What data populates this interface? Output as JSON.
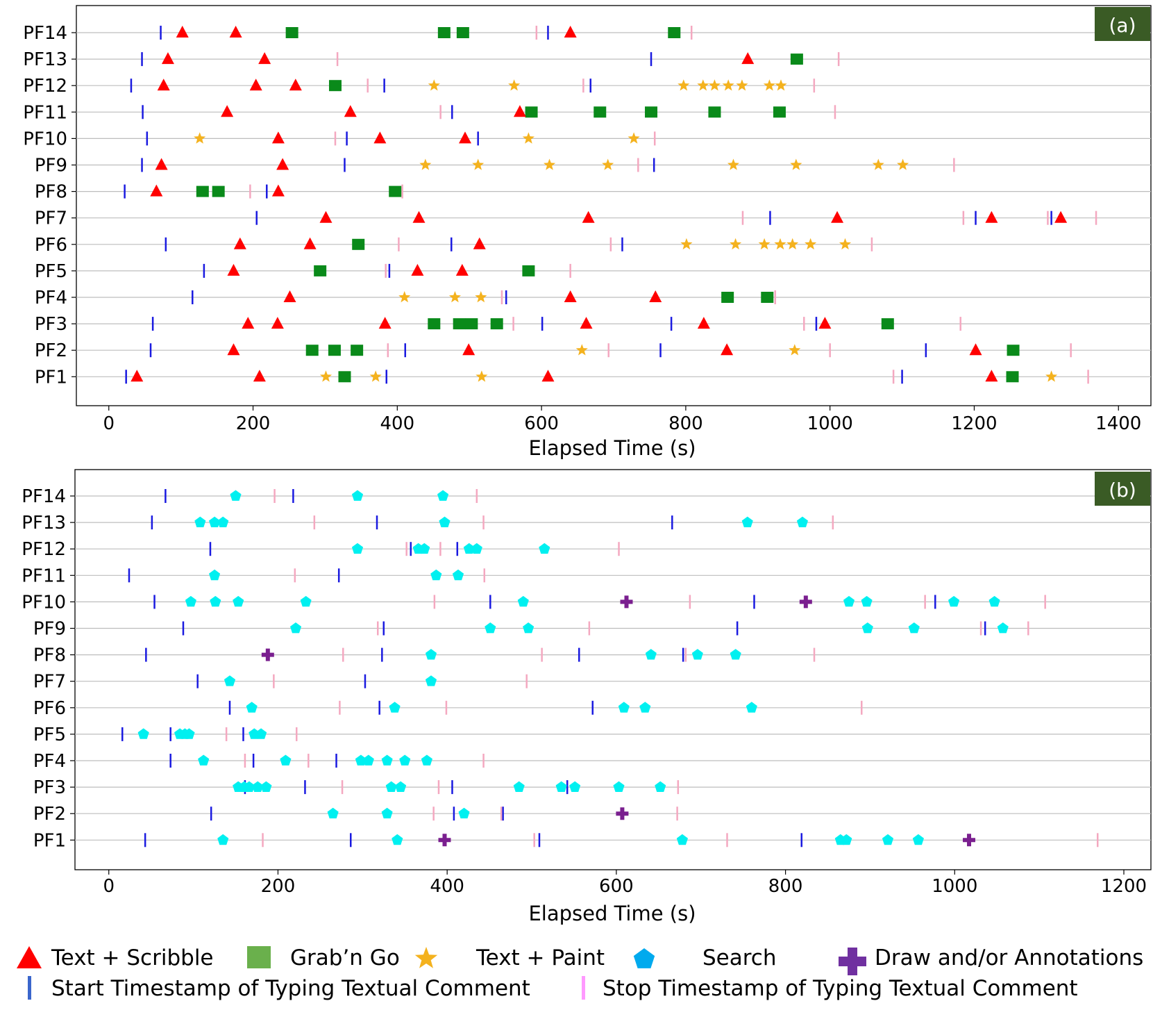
{
  "colors": {
    "text_scribble": "#ff0000",
    "grab_n_go": "#0a8a1a",
    "text_paint": "#f4b21e",
    "search": "#00f0f0",
    "draw_annotations": "#7a1f8f",
    "start_ts": "#1a1ae0",
    "stop_ts": "#f4a8c0",
    "gridline": "#bdbdbd",
    "panel_label_bg": "#3a5b25",
    "legend_grab_n_go": "#6ab04c",
    "legend_search": "#00aaee",
    "legend_draw": "#7030a0",
    "legend_start": "#3a66cc",
    "legend_stop": "#ff99ff"
  },
  "legend": [
    {
      "key": "text_scribble",
      "label": "Text + Scribble",
      "icon": "triangle-icon"
    },
    {
      "key": "grab_n_go",
      "label": "Grab’n Go",
      "icon": "square-icon"
    },
    {
      "key": "text_paint",
      "label": "Text + Paint",
      "icon": "star-icon"
    },
    {
      "key": "search",
      "label": "Search",
      "icon": "pentagon-icon"
    },
    {
      "key": "draw_annotations",
      "label": "Draw and/or Annotations",
      "icon": "plus-icon"
    },
    {
      "key": "start_ts",
      "label": "Start Timestamp of Typing Textual Comment",
      "icon": "vertical-bar-icon"
    },
    {
      "key": "stop_ts",
      "label": "Stop Timestamp of Typing Textual Comment",
      "icon": "vertical-bar-icon"
    }
  ],
  "chart_data": [
    {
      "type": "scatter",
      "panel_label": "(a)",
      "title": "",
      "xlabel": "Elapsed Time (s)",
      "ylabel": "",
      "xlim": [
        -45,
        1445
      ],
      "xticks": [
        0,
        200,
        400,
        600,
        800,
        1000,
        1200,
        1400
      ],
      "participants": [
        "PF14",
        "PF13",
        "PF12",
        "PF11",
        "PF10",
        "PF9",
        "PF8",
        "PF7",
        "PF6",
        "PF5",
        "PF4",
        "PF3",
        "PF2",
        "PF1"
      ],
      "series": [
        {
          "name": "Text + Scribble",
          "key": "text_scribble",
          "marker": "triangle",
          "points": {
            "PF14": [
              102,
              176,
              640
            ],
            "PF13": [
              82,
              216,
              886
            ],
            "PF12": [
              76,
              204,
              259
            ],
            "PF11": [
              164,
              335,
              570
            ],
            "PF10": [
              235,
              376,
              494
            ],
            "PF9": [
              73,
              241
            ],
            "PF8": [
              66,
              235
            ],
            "PF7": [
              301,
              430,
              665,
              1010,
              1224,
              1320
            ],
            "PF6": [
              182,
              279,
              514
            ],
            "PF5": [
              173,
              428,
              490
            ],
            "PF4": [
              251,
              640,
              758
            ],
            "PF3": [
              193,
              234,
              383,
              662,
              825,
              993
            ],
            "PF2": [
              173,
              499,
              857,
              1202
            ],
            "PF1": [
              39,
              209,
              609,
              1224
            ]
          }
        },
        {
          "name": "Grab’n Go",
          "key": "grab_n_go",
          "marker": "square",
          "points": {
            "PF14": [
              254,
              465,
              491,
              784
            ],
            "PF13": [
              954
            ],
            "PF12": [
              314
            ],
            "PF11": [
              586,
              681,
              752,
              840,
              930
            ],
            "PF10": [],
            "PF9": [],
            "PF8": [
              130,
              152,
              397
            ],
            "PF7": [],
            "PF6": [
              346
            ],
            "PF5": [
              293,
              582
            ],
            "PF4": [
              858,
              913
            ],
            "PF3": [
              451,
              486,
              503,
              538,
              1080
            ],
            "PF2": [
              282,
              313,
              344,
              1254
            ],
            "PF1": [
              327,
              1253
            ]
          }
        },
        {
          "name": "Text + Paint",
          "key": "text_paint",
          "marker": "star",
          "points": {
            "PF14": [],
            "PF13": [],
            "PF12": [
              451,
              562,
              797,
              824,
              840,
              859,
              878,
              916,
              932
            ],
            "PF11": [],
            "PF10": [
              126,
              582,
              728
            ],
            "PF9": [
              439,
              512,
              611,
              692,
              866,
              953,
              1067,
              1101
            ],
            "PF8": [],
            "PF7": [],
            "PF6": [
              801,
              869,
              909,
              931,
              948,
              973,
              1021
            ],
            "PF5": [],
            "PF4": [
              410,
              480,
              516
            ],
            "PF3": [],
            "PF2": [
              656,
              951
            ],
            "PF1": [
              301,
              370,
              517,
              1307
            ]
          }
        },
        {
          "name": "Start Timestamp",
          "key": "start_ts",
          "marker": "vline",
          "points": {
            "PF14": [
              72,
              609
            ],
            "PF13": [
              46,
              752
            ],
            "PF12": [
              31,
              382,
              668
            ],
            "PF11": [
              47,
              476
            ],
            "PF10": [
              53,
              330,
              512
            ],
            "PF9": [
              46,
              327,
              756
            ],
            "PF8": [
              22,
              219
            ],
            "PF7": [
              205,
              917,
              1202,
              1307
            ],
            "PF6": [
              79,
              475,
              712
            ],
            "PF5": [
              132,
              389
            ],
            "PF4": [
              116,
              551
            ],
            "PF3": [
              61,
              601,
              780,
              981
            ],
            "PF2": [
              58,
              411,
              765,
              1133
            ],
            "PF1": [
              24,
              385,
              1100
            ]
          }
        },
        {
          "name": "Stop Timestamp",
          "key": "stop_ts",
          "marker": "vline",
          "points": {
            "PF14": [
              593,
              808
            ],
            "PF13": [
              317,
              1012
            ],
            "PF12": [
              359,
              658,
              978
            ],
            "PF11": [
              460,
              1007
            ],
            "PF10": [
              314,
              757
            ],
            "PF9": [
              734,
              1172
            ],
            "PF8": [
              196,
              407
            ],
            "PF7": [
              879,
              1185,
              1302,
              1369
            ],
            "PF6": [
              402,
              696,
              1058
            ],
            "PF5": [
              384,
              640
            ],
            "PF4": [
              545,
              924
            ],
            "PF3": [
              561,
              964,
              1181
            ],
            "PF2": [
              387,
              693,
              1000,
              1334
            ],
            "PF1": [
              1088,
              1358
            ]
          }
        }
      ]
    },
    {
      "type": "scatter",
      "panel_label": "(b)",
      "title": "",
      "xlabel": "Elapsed Time (s)",
      "ylabel": "",
      "xlim": [
        -40,
        1232
      ],
      "xticks": [
        0,
        200,
        400,
        600,
        800,
        1000,
        1200
      ],
      "participants": [
        "PF14",
        "PF13",
        "PF12",
        "PF11",
        "PF10",
        "PF9",
        "PF8",
        "PF7",
        "PF6",
        "PF5",
        "PF4",
        "PF3",
        "PF2",
        "PF1"
      ],
      "series": [
        {
          "name": "Search",
          "key": "search",
          "marker": "pentagon",
          "points": {
            "PF14": [
              150,
              294,
              395
            ],
            "PF13": [
              108,
              125,
              135,
              397,
              755,
              820
            ],
            "PF12": [
              294,
              366,
              373,
              426,
              435,
              515
            ],
            "PF11": [
              125,
              387,
              413
            ],
            "PF10": [
              97,
              126,
              153,
              233,
              490,
              875,
              896,
              999,
              1047
            ],
            "PF9": [
              221,
              451,
              496,
              897,
              952,
              1057
            ],
            "PF8": [
              381,
              641,
              696,
              741
            ],
            "PF7": [
              143,
              381
            ],
            "PF6": [
              169,
              338,
              609,
              634,
              760
            ],
            "PF5": [
              41,
              84,
              90,
              95,
              172,
              180
            ],
            "PF4": [
              112,
              209,
              298,
              307,
              329,
              350,
              376
            ],
            "PF3": [
              153,
              160,
              166,
              176,
              186,
              334,
              345,
              485,
              535,
              551,
              603,
              652
            ],
            "PF2": [
              265,
              329,
              420
            ],
            "PF1": [
              135,
              341,
              678,
              865,
              872,
              921,
              957
            ]
          }
        },
        {
          "name": "Draw and/or Annotations",
          "key": "draw_annotations",
          "marker": "plus",
          "points": {
            "PF14": [],
            "PF13": [],
            "PF12": [],
            "PF11": [],
            "PF10": [
              612,
              824
            ],
            "PF9": [],
            "PF8": [
              188
            ],
            "PF7": [],
            "PF6": [],
            "PF5": [],
            "PF4": [],
            "PF3": [],
            "PF2": [
              607
            ],
            "PF1": [
              397,
              1017
            ]
          }
        },
        {
          "name": "Start Timestamp",
          "key": "start_ts",
          "marker": "vline",
          "points": {
            "PF14": [
              67,
              218
            ],
            "PF13": [
              51,
              317,
              666
            ],
            "PF12": [
              120,
              357,
              412
            ],
            "PF11": [
              24,
              272
            ],
            "PF10": [
              54,
              451,
              763,
              977
            ],
            "PF9": [
              88,
              325,
              743,
              1036
            ],
            "PF8": [
              44,
              323,
              556,
              679
            ],
            "PF7": [
              105,
              303
            ],
            "PF6": [
              143,
              320,
              572
            ],
            "PF5": [
              16,
              73,
              159
            ],
            "PF4": [
              73,
              171,
              269
            ],
            "PF3": [
              161,
              232,
              406,
              542
            ],
            "PF2": [
              121,
              408,
              466
            ],
            "PF1": [
              43,
              286,
              509,
              819
            ]
          }
        },
        {
          "name": "Stop Timestamp",
          "key": "stop_ts",
          "marker": "vline",
          "points": {
            "PF14": [
              196,
              435
            ],
            "PF13": [
              243,
              443,
              856
            ],
            "PF12": [
              352,
              392,
              603
            ],
            "PF11": [
              220,
              444
            ],
            "PF10": [
              385,
              687,
              965,
              1107
            ],
            "PF9": [
              318,
              568,
              1031,
              1087
            ],
            "PF8": [
              277,
              512,
              682,
              834
            ],
            "PF7": [
              195,
              494
            ],
            "PF6": [
              273,
              399,
              890
            ],
            "PF5": [
              139,
              222
            ],
            "PF4": [
              161,
              236,
              443
            ],
            "PF3": [
              276,
              390,
              673
            ],
            "PF2": [
              384,
              464,
              672
            ],
            "PF1": [
              182,
              503,
              731,
              1169
            ]
          }
        }
      ]
    }
  ]
}
